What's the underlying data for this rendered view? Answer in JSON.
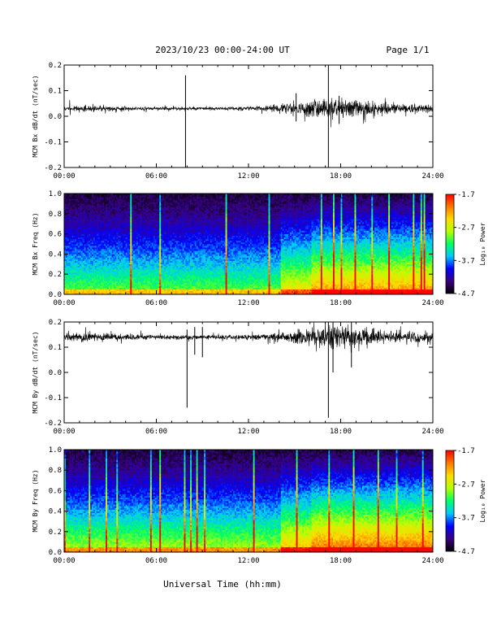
{
  "header": {
    "title": "2023/10/23  00:00-24:00 UT",
    "page": "Page 1/1"
  },
  "x_axis_label": "Universal Time (hh:mm)",
  "colorbar": {
    "label": "Log₁₀ Power",
    "ticks": [
      "-1.7",
      "-2.7",
      "-3.7",
      "-4.7"
    ]
  },
  "chart_data": [
    {
      "type": "line",
      "ylabel": "MCM Bx dB/dt (nT/sec)",
      "xlim": [
        "00:00",
        "24:00"
      ],
      "x_ticks": [
        "00:00",
        "06:00",
        "12:00",
        "18:00",
        "24:00"
      ],
      "ylim": [
        -0.2,
        0.2
      ],
      "y_ticks": [
        "0.2",
        "0.1",
        "0.0",
        "-0.1",
        "-0.2"
      ],
      "baseline": 0.03,
      "noise_profile": [
        {
          "t": 0,
          "amp": 0.012
        },
        {
          "t": 6,
          "amp": 0.006
        },
        {
          "t": 11,
          "amp": 0.006
        },
        {
          "t": 13,
          "amp": 0.01
        },
        {
          "t": 15,
          "amp": 0.022
        },
        {
          "t": 17,
          "amp": 0.035
        },
        {
          "t": 18,
          "amp": 0.035
        },
        {
          "t": 21,
          "amp": 0.02
        },
        {
          "t": 24,
          "amp": 0.014
        }
      ],
      "spikes": [
        {
          "t": 7.9,
          "min": -0.2,
          "max": 0.16
        },
        {
          "t": 15.1,
          "min": -0.02,
          "max": 0.09
        },
        {
          "t": 17.2,
          "min": -0.2,
          "max": 0.2
        },
        {
          "t": 17.9,
          "min": -0.03,
          "max": 0.08
        }
      ]
    },
    {
      "type": "heatmap",
      "ylabel": "MCM Bx Freq (Hz)",
      "xlim": [
        "00:00",
        "24:00"
      ],
      "x_ticks": [
        "00:00",
        "06:00",
        "12:00",
        "18:00",
        "24:00"
      ],
      "ylim": [
        0,
        1.0
      ],
      "y_ticks": [
        "1.0",
        "0.8",
        "0.6",
        "0.4",
        "0.2",
        "0.0"
      ],
      "zlim": [
        -4.7,
        -1.7
      ],
      "colormap": [
        "#000000",
        "#3a0080",
        "#0000ff",
        "#00c8ff",
        "#00ff64",
        "#b4ff00",
        "#ffdc00",
        "#ff7800",
        "#ff0000"
      ]
    },
    {
      "type": "line",
      "ylabel": "MCM By dB/dt (nT/sec)",
      "xlim": [
        "00:00",
        "24:00"
      ],
      "x_ticks": [
        "00:00",
        "06:00",
        "12:00",
        "18:00",
        "24:00"
      ],
      "ylim": [
        -0.2,
        0.2
      ],
      "y_ticks": [
        "0.2",
        "0.1",
        "0.0",
        "-0.1",
        "-0.2"
      ],
      "baseline": 0.14,
      "noise_profile": [
        {
          "t": 0,
          "amp": 0.02
        },
        {
          "t": 6,
          "amp": 0.008
        },
        {
          "t": 11,
          "amp": 0.008
        },
        {
          "t": 13,
          "amp": 0.012
        },
        {
          "t": 15,
          "amp": 0.025
        },
        {
          "t": 17,
          "amp": 0.045
        },
        {
          "t": 18,
          "amp": 0.045
        },
        {
          "t": 21,
          "amp": 0.025
        },
        {
          "t": 24,
          "amp": 0.02
        }
      ],
      "spikes": [
        {
          "t": 8.0,
          "min": -0.14,
          "max": 0.17
        },
        {
          "t": 8.5,
          "min": 0.07,
          "max": 0.18
        },
        {
          "t": 9.0,
          "min": 0.06,
          "max": 0.18
        },
        {
          "t": 17.2,
          "min": -0.18,
          "max": 0.2
        },
        {
          "t": 17.5,
          "min": 0.0,
          "max": 0.2
        },
        {
          "t": 18.7,
          "min": 0.02,
          "max": 0.2
        }
      ]
    },
    {
      "type": "heatmap",
      "ylabel": "MCM By Freq (Hz)",
      "xlim": [
        "00:00",
        "24:00"
      ],
      "x_ticks": [
        "00:00",
        "06:00",
        "12:00",
        "18:00",
        "24:00"
      ],
      "ylim": [
        0,
        1.0
      ],
      "y_ticks": [
        "1.0",
        "0.8",
        "0.6",
        "0.4",
        "0.2",
        "0.0"
      ],
      "zlim": [
        -4.7,
        -1.7
      ],
      "colormap": [
        "#000000",
        "#3a0080",
        "#0000ff",
        "#00c8ff",
        "#00ff64",
        "#b4ff00",
        "#ffdc00",
        "#ff7800",
        "#ff0000"
      ]
    }
  ]
}
